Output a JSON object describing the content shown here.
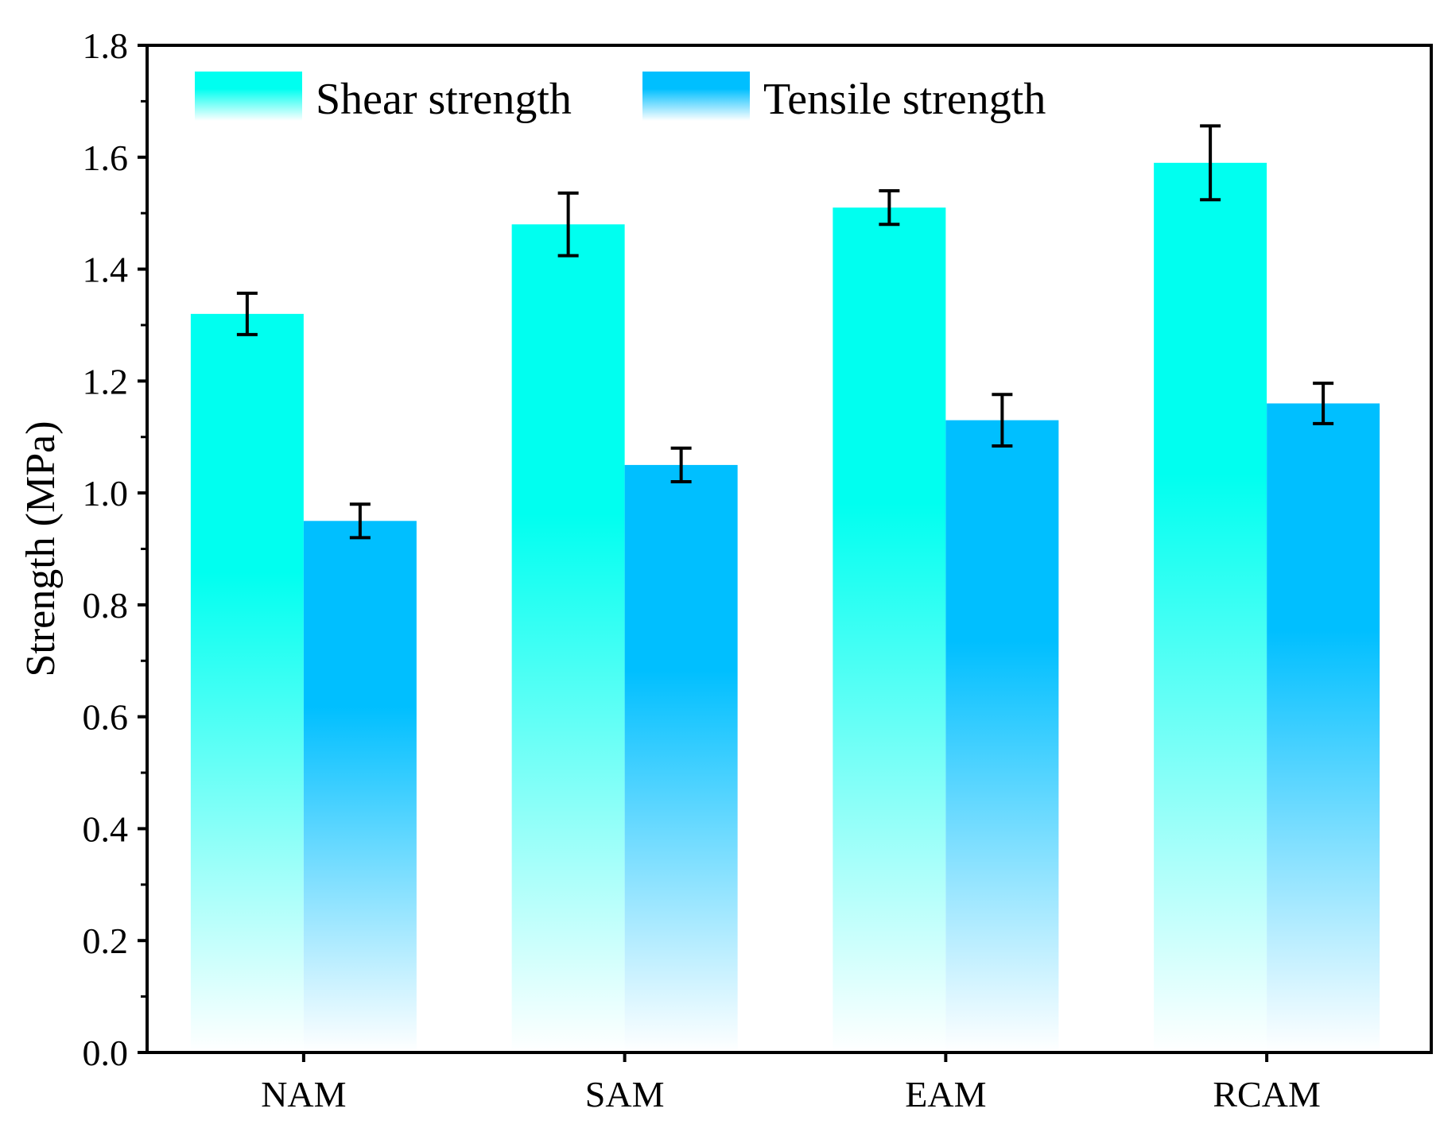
{
  "chart_data": {
    "type": "bar",
    "title": "",
    "xlabel": "",
    "ylabel": "Strength (MPa)",
    "ylim": [
      0,
      1.8
    ],
    "yticks": [
      "0.0",
      "0.2",
      "0.4",
      "0.6",
      "0.8",
      "1.0",
      "1.2",
      "1.4",
      "1.6",
      "1.8"
    ],
    "categories": [
      "NAM",
      "SAM",
      "EAM",
      "RCAM"
    ],
    "grid": false,
    "legend_position": "top",
    "series": [
      {
        "name": "Shear strength",
        "color": "#00FFF0",
        "values": [
          1.32,
          1.48,
          1.51,
          1.59
        ],
        "errors": [
          0.037,
          0.056,
          0.03,
          0.066
        ]
      },
      {
        "name": "Tensile strength",
        "color": "#00BFFF",
        "values": [
          0.95,
          1.05,
          1.13,
          1.16
        ],
        "errors": [
          0.03,
          0.03,
          0.046,
          0.036
        ]
      }
    ]
  }
}
